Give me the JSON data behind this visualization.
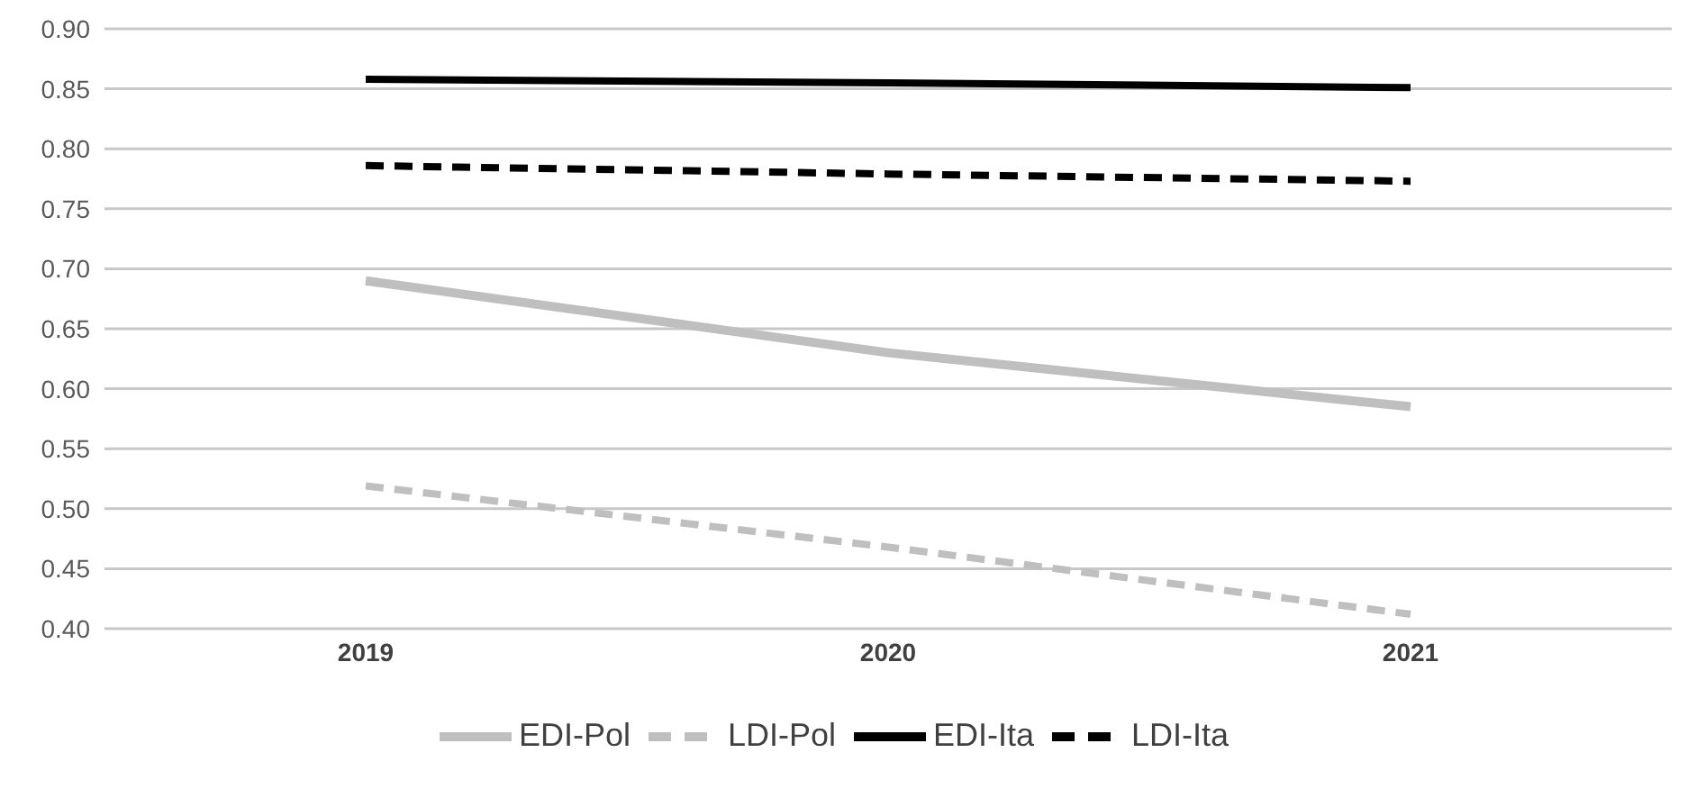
{
  "chart_data": {
    "type": "line",
    "categories": [
      "2019",
      "2020",
      "2021"
    ],
    "series": [
      {
        "name": "EDI-Pol",
        "color": "#bfbfbf",
        "values": [
          0.69,
          0.63,
          0.585
        ],
        "line_style": "solid"
      },
      {
        "name": "LDI-Pol",
        "color": "#bfbfbf",
        "values": [
          0.519,
          0.468,
          0.412
        ],
        "line_style": "dashed"
      },
      {
        "name": "EDI-Ita",
        "color": "#000000",
        "values": [
          0.858,
          0.855,
          0.851
        ],
        "line_style": "solid"
      },
      {
        "name": "LDI-Ita",
        "color": "#000000",
        "values": [
          0.786,
          0.779,
          0.773
        ],
        "line_style": "dashed"
      }
    ],
    "ylim": [
      0.4,
      0.9
    ],
    "yticks": [
      {
        "value": 0.4,
        "label": "0.40"
      },
      {
        "value": 0.45,
        "label": "0.45"
      },
      {
        "value": 0.5,
        "label": "0.50"
      },
      {
        "value": 0.55,
        "label": "0.55"
      },
      {
        "value": 0.6,
        "label": "0.60"
      },
      {
        "value": 0.65,
        "label": "0.65"
      },
      {
        "value": 0.7,
        "label": "0.70"
      },
      {
        "value": 0.75,
        "label": "0.75"
      },
      {
        "value": 0.8,
        "label": "0.80"
      },
      {
        "value": 0.85,
        "label": "0.85"
      },
      {
        "value": 0.9,
        "label": "0.90"
      }
    ],
    "grid": "y",
    "legend": "bottom",
    "marker": "none"
  }
}
